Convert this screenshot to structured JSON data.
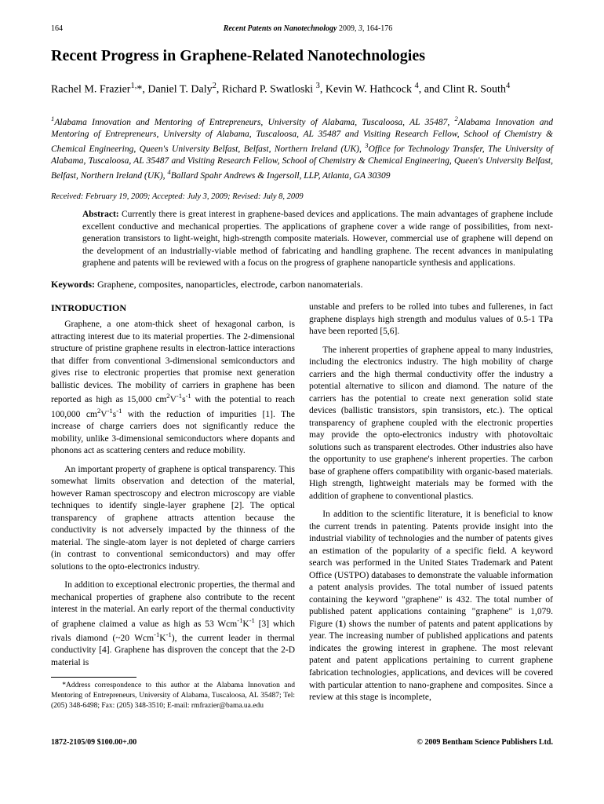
{
  "header": {
    "page": "164",
    "journal": "Recent Patents on Nanotechnology",
    "year_vol": " 2009, ",
    "issue": "3",
    "pages": ", 164-176"
  },
  "title": "Recent Progress in Graphene-Related Nanotechnologies",
  "authors_html": "Rachel M. Frazier<sup>1,</sup>*, Daniel T. Daly<sup>2</sup>, Richard P. Swatloski <sup>3</sup>, Kevin W. Hathcock <sup>4</sup>, and Clint R. South<sup>4</sup>",
  "affiliations_html": "<sup>1</sup>Alabama Innovation and Mentoring of Entrepreneurs, University of Alabama, Tuscaloosa, AL 35487, <sup>2</sup>Alabama Innovation and Mentoring of Entrepreneurs, University of Alabama, Tuscaloosa, AL 35487 and Visiting Research Fellow, School of Chemistry & Chemical Engineering, Queen's University Belfast, Belfast, Northern Ireland (UK), <sup>3</sup>Office for Technology Transfer, The University of Alabama, Tuscaloosa, AL 35487 and Visiting Research Fellow, School of Chemistry & Chemical Engineering, Queen's University Belfast, Belfast, Northern Ireland (UK), <sup>4</sup>Ballard Spahr Andrews & Ingersoll, LLP, Atlanta, GA 30309",
  "received": "Received: February 19, 2009; Accepted: July 3, 2009; Revised: July 8, 2009",
  "abstract_label": "Abstract:",
  "abstract": " Currently there is great interest in graphene-based devices and applications. The main advantages of graphene include excellent conductive and mechanical properties. The applications of graphene cover a wide range of possibilities, from next-generation transistors to light-weight, high-strength composite materials. However, commercial use of graphene will depend on the development of an industrially-viable method of fabricating and handling graphene. The recent advances in manipulating graphene and patents will be reviewed with a focus on the progress of graphene nanoparticle synthesis and applications.",
  "keywords_label": "Keywords:",
  "keywords": " Graphene, composites, nanoparticles, electrode, carbon nanomaterials.",
  "section_heading": "INTRODUCTION",
  "p1_html": "Graphene, a one atom-thick sheet of hexagonal carbon, is attracting interest due to its material properties. The 2-dimensional structure of pristine graphene results in electron-lattice interactions that differ from conventional 3-dimensional semiconductors and gives rise to electronic properties that promise next generation ballistic devices. The mobility of carriers in graphene has been reported as high as 15,000 cm<sup>2</sup>V<sup>-1</sup>s<sup>-1</sup> with the potential to reach 100,000 cm<sup>2</sup>V<sup>-1</sup>s<sup>-1</sup> with the reduction of impurities [1]. The increase of charge carriers does not significantly reduce the mobility, unlike 3-dimensional semiconductors where dopants and phonons act as scattering centers and reduce mobility.",
  "p2": "An important property of graphene is optical transparency. This somewhat limits observation and detection of the material, however Raman spectroscopy and electron microscopy are viable techniques to identify single-layer graphene [2]. The optical transparency of graphene attracts attention because the conductivity is not adversely impacted by the thinness of the material. The single-atom layer is not depleted of charge carriers (in contrast to conventional semiconductors) and may offer solutions to the opto-electronics industry.",
  "p3_html": "In addition to exceptional electronic properties, the thermal and mechanical properties of graphene also contribute to the recent interest in the material. An early report of the thermal conductivity of graphene claimed a value as high as 53 Wcm<sup>-1</sup>K<sup>-1</sup> [3] which rivals diamond (~20 Wcm<sup>-1</sup>K<sup>-1</sup>), the current leader in thermal conductivity [4]. Graphene has disproven the concept that the 2-D material is",
  "footnote": "*Address correspondence to this author at the Alabama Innovation and Mentoring of Entrepreneurs, University of Alabama, Tuscaloosa, AL 35487; Tel: (205) 348-6498; Fax: (205) 348-3510; E-mail: rmfrazier@bama.ua.edu",
  "p4": "unstable and prefers to be rolled into tubes and fullerenes, in fact graphene displays high strength and modulus values of 0.5-1 TPa have been reported [5,6].",
  "p5": "The inherent properties of graphene appeal to many industries, including the electronics industry. The high mobility of charge carriers and the high thermal conductivity offer the industry a potential alternative to silicon and diamond. The nature of the carriers has the potential to create next generation solid state devices (ballistic transistors, spin transistors, etc.). The optical transparency of graphene coupled with the electronic properties may provide the opto-electronics industry with photovoltaic solutions such as transparent electrodes. Other industries also have the opportunity to use graphene's inherent properties. The carbon base of graphene offers compatibility with organic-based materials. High strength, lightweight materials may be formed with the addition of graphene to conventional plastics.",
  "p6_html": "In addition to the scientific literature, it is beneficial to know the current trends in patenting. Patents provide insight into the industrial viability of technologies and the number of patents gives an estimation of the popularity of a specific field. A keyword search was performed in the United States Trademark and Patent Office (USTPO) databases to demonstrate the valuable information a patent analysis provides. The total number of issued patents containing the keyword \"graphene\" is 432. The total number of published patent applications containing \"graphene\" is 1,079. Figure (<b>1</b>) shows the number of patents and patent applications by year. The increasing number of published applications and patents indicates the growing interest in graphene. The most relevant patent and patent applications pertaining to current graphene fabrication technologies, applications, and devices will be covered with particular attention to nano-graphene and composites. Since a review at this stage is incomplete,",
  "footer": {
    "left": "1872-2105/09 $100.00+.00",
    "right": "© 2009 Bentham Science Publishers Ltd."
  }
}
